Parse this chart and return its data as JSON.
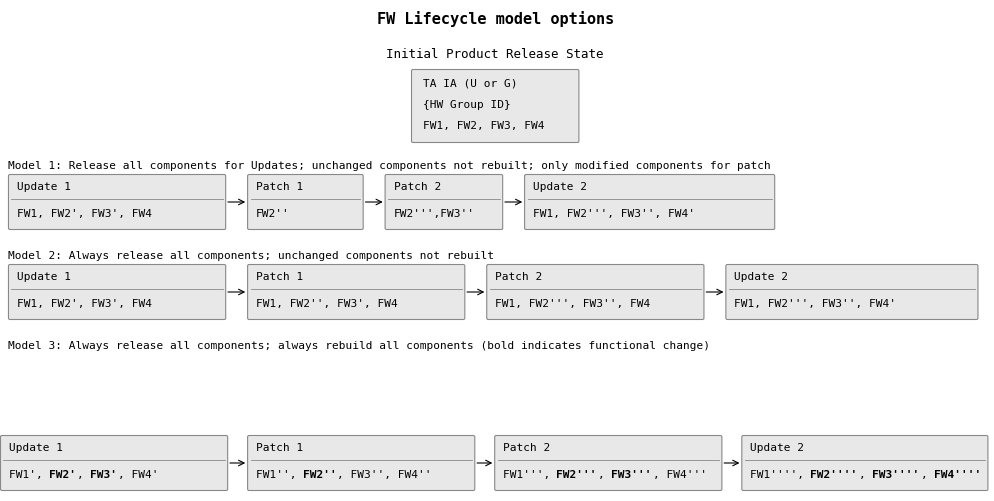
{
  "title": "FW Lifecycle model options",
  "title_fontsize": 11,
  "bg_color": "#ffffff",
  "box_bg": "#e8e8e8",
  "box_edge": "#888888",
  "initial_label": "Initial Product Release State",
  "initial_box": [
    "TA IA (U or G)",
    "{HW Group ID}",
    "FW1, FW2, FW3, FW4"
  ],
  "model1_label": "Model 1: Release all components for Updates; unchanged components not rebuilt; only modified components for patch",
  "model2_label": "Model 2: Always release all components; unchanged components not rebuilt",
  "model3_label": "Model 3: Always release all components; always rebuild all components (bold indicates functional change)",
  "model1_boxes": [
    {
      "title": "Update 1",
      "lines": [
        "FW1, FW2’, FW3’, FW4"
      ]
    },
    {
      "title": "Patch 1",
      "lines": [
        "FW2”"
      ]
    },
    {
      "title": "Patch 2",
      "lines": [
        "FW2’’’,FW3”"
      ]
    },
    {
      "title": "Update 2",
      "lines": [
        "FW1, FW2’’’, FW3”, FW4’"
      ]
    }
  ],
  "model2_boxes": [
    {
      "title": "Update 1",
      "lines": [
        "FW1, FW2’, FW3’, FW4"
      ]
    },
    {
      "title": "Patch 1",
      "lines": [
        "FW1, FW2”, FW3’, FW4"
      ]
    },
    {
      "title": "Patch 2",
      "lines": [
        "FW1, FW2’’’, FW3”, FW4"
      ]
    },
    {
      "title": "Update 2",
      "lines": [
        "FW1, FW2’’’, FW3”, FW4’"
      ]
    }
  ],
  "model3_boxes": [
    {
      "title": "Update 1",
      "segments": [
        {
          "text": "FW1’, ",
          "bold": false
        },
        {
          "text": "FW2’",
          "bold": true
        },
        {
          "text": ", ",
          "bold": false
        },
        {
          "text": "FW3’",
          "bold": true
        },
        {
          "text": ", FW4’",
          "bold": false
        }
      ]
    },
    {
      "title": "Patch 1",
      "segments": [
        {
          "text": "FW1”, ",
          "bold": false
        },
        {
          "text": "FW2”",
          "bold": true
        },
        {
          "text": ", FW3”, FW4”",
          "bold": false
        }
      ]
    },
    {
      "title": "Patch 2",
      "segments": [
        {
          "text": "FW1’’’, ",
          "bold": false
        },
        {
          "text": "FW2’’’",
          "bold": true
        },
        {
          "text": ", ",
          "bold": false
        },
        {
          "text": "FW3’’’",
          "bold": true
        },
        {
          "text": ", FW4’’’",
          "bold": false
        }
      ]
    },
    {
      "title": "Update 2",
      "segments": [
        {
          "text": "FW1’’’’, ",
          "bold": false
        },
        {
          "text": "FW2’’’’",
          "bold": true
        },
        {
          "text": ", ",
          "bold": false
        },
        {
          "text": "FW3’’’’",
          "bold": true
        },
        {
          "text": ", ",
          "bold": false
        },
        {
          "text": "FW4’’’’",
          "bold": true
        }
      ]
    }
  ],
  "font_size": 8,
  "label_font_size": 8
}
